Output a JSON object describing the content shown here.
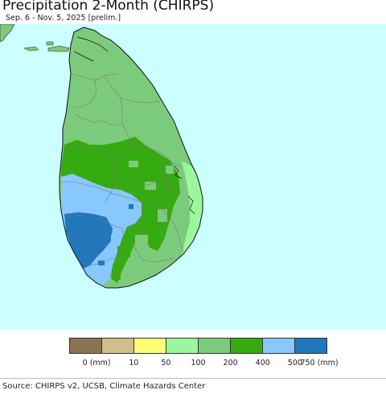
{
  "title": "Precipitation 2-Month (CHIRPS)",
  "subtitle": "Sep. 6 - Nov. 5, 2025 [prelim.]",
  "map": {
    "ocean_color": "#ccffff",
    "land_outside_color": "#7dcb7b",
    "boundary_color": "#777777"
  },
  "legend": {
    "bins": [
      {
        "color": "#8b7352"
      },
      {
        "color": "#cfbf88"
      },
      {
        "color": "#ffff77"
      },
      {
        "color": "#9cf79c"
      },
      {
        "color": "#7ccb7c"
      },
      {
        "color": "#36aa11"
      },
      {
        "color": "#88c8ff"
      },
      {
        "color": "#2277bb"
      }
    ],
    "ticks": [
      "0 (mm)",
      "10",
      "50",
      "100",
      "200",
      "400",
      "500",
      "750 (mm)"
    ]
  },
  "source": "Source: CHIRPS v2, UCSB, Climate Hazards Center"
}
